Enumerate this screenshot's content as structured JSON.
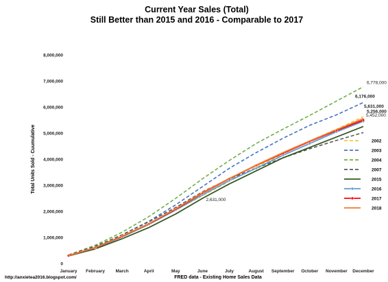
{
  "chart_data": {
    "type": "line",
    "title": "Current Year Sales (Total)",
    "subtitle": "Still Better than 2015 and 2016 - Comparable to 2017",
    "xlabel": "FRED data - Existing Home Sales Data",
    "ylabel": "Total Units Sold - Cuumulative",
    "source_note": "http://anxietea2016.blogspot.com/",
    "categories": [
      "January",
      "February",
      "March",
      "April",
      "May",
      "June",
      "July",
      "August",
      "September",
      "October",
      "November",
      "December"
    ],
    "ylim": [
      0,
      8000000
    ],
    "yticks": [
      "0",
      "1,000,000",
      "2,000,000",
      "3,000,000",
      "4,000,000",
      "5,000,000",
      "6,000,000",
      "7,000,000",
      "8,000,000"
    ],
    "grid": false,
    "legend_position": "right",
    "series": [
      {
        "name": "2002",
        "color": "#f2c744",
        "dash": "dashed",
        "marker": "",
        "values": [
          310000,
          620000,
          1050000,
          1530000,
          2050000,
          2600000,
          3150000,
          3700000,
          4200000,
          4700000,
          5150000,
          5631000
        ]
      },
      {
        "name": "2003",
        "color": "#4472c4",
        "dash": "dashed",
        "marker": "",
        "values": [
          320000,
          650000,
          1100000,
          1620000,
          2250000,
          2950000,
          3650000,
          4250000,
          4800000,
          5300000,
          5700000,
          6176000
        ]
      },
      {
        "name": "2004",
        "color": "#70ad47",
        "dash": "dashed",
        "marker": "",
        "values": [
          330000,
          700000,
          1200000,
          1800000,
          2500000,
          3250000,
          3950000,
          4600000,
          5150000,
          5680000,
          6230000,
          6778000
        ]
      },
      {
        "name": "2007",
        "color": "#595959",
        "dash": "dashed",
        "marker": "",
        "values": [
          320000,
          660000,
          1100000,
          1600000,
          2150000,
          2750000,
          3250000,
          3650000,
          4050000,
          4400000,
          4720000,
          5020000
        ]
      },
      {
        "name": "2015",
        "color": "#375623",
        "dash": "solid",
        "marker": "",
        "values": [
          290000,
          560000,
          950000,
          1380000,
          1900000,
          2500000,
          3050000,
          3550000,
          4050000,
          4450000,
          4850000,
          5256000
        ]
      },
      {
        "name": "2016",
        "color": "#5b9bd5",
        "dash": "solid",
        "marker": "circle",
        "values": [
          295000,
          600000,
          1020000,
          1500000,
          2050000,
          2631000,
          3180000,
          3650000,
          4150000,
          4600000,
          5050000,
          5452000
        ]
      },
      {
        "name": "2017",
        "color": "#ff0000",
        "dash": "solid",
        "marker": "circle",
        "values": [
          300000,
          610000,
          1040000,
          1520000,
          2080000,
          2700000,
          3250000,
          3760000,
          4220000,
          4680000,
          5100000,
          5500000
        ]
      },
      {
        "name": "2018",
        "color": "#ed7d31",
        "dash": "solid",
        "marker": "",
        "values": [
          305000,
          615000,
          1050000,
          1530000,
          2100000,
          2720000,
          3260000,
          3770000,
          4250000,
          4700000,
          5130000,
          5560000
        ]
      }
    ],
    "annotations": [
      {
        "text": "6,778,000",
        "color": "#222222",
        "series": "2004"
      },
      {
        "text": "6,176,000",
        "color": "#000000",
        "series": "2003"
      },
      {
        "text": "5,631,000",
        "color": "#000000",
        "series": "2002"
      },
      {
        "text": "5,452,000",
        "color": "#222222",
        "series": "2016"
      },
      {
        "text": "5,256,000",
        "color": "#2e75b6",
        "series": "2015"
      },
      {
        "text": "2,631,000",
        "color": "#222222",
        "series": "2016"
      }
    ]
  }
}
